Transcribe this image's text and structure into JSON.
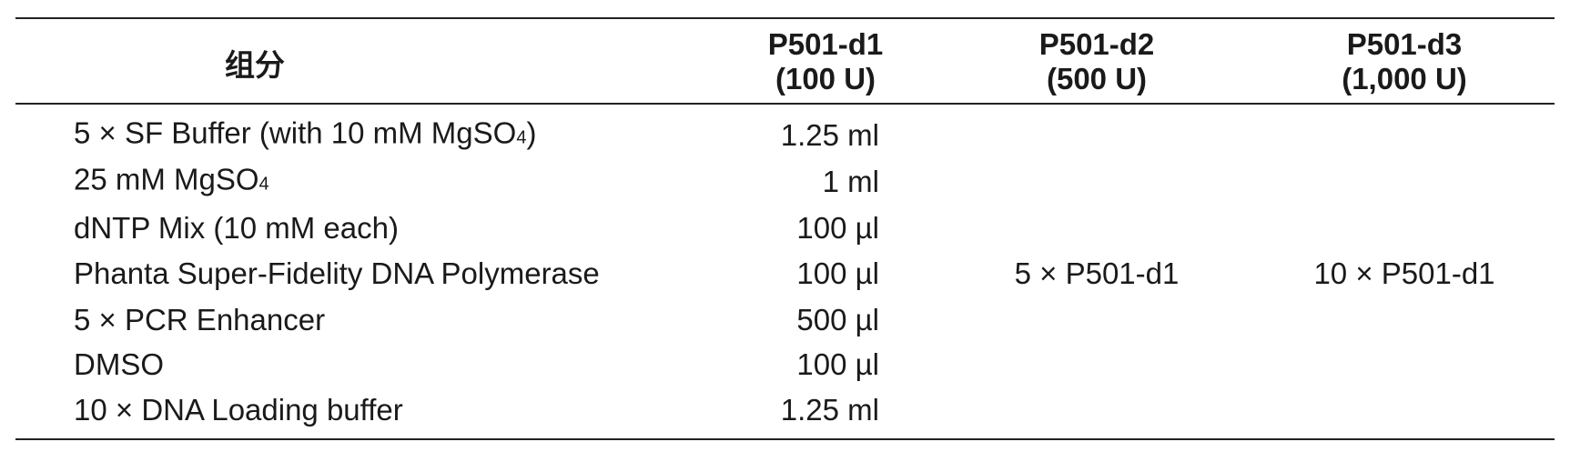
{
  "table": {
    "header": {
      "component": "组分",
      "columns": [
        [
          "P501-d1",
          "(100 U)"
        ],
        [
          "P501-d2",
          "(500 U)"
        ],
        [
          "P501-d3",
          "(1,000 U)"
        ]
      ]
    },
    "rows": [
      {
        "component": "5 × SF Buffer (with 10 mM MgSO",
        "sub": "4",
        "suffix": ")",
        "amount": "1.25 ml"
      },
      {
        "component": "25 mM MgSO",
        "sub": "4",
        "amount": "1 ml"
      },
      {
        "component": "dNTP Mix (10 mM each)",
        "amount": "100 µl"
      },
      {
        "component": "Phanta Super-Fidelity DNA Polymerase",
        "amount": "100 µl"
      },
      {
        "component": "5 × PCR Enhancer",
        "amount": "500 µl"
      },
      {
        "component": "DMSO",
        "amount": "100 µl"
      },
      {
        "component": "10 × DNA Loading buffer",
        "amount": "1.25 ml"
      }
    ],
    "merged": [
      "5 × P501-d1",
      "10 × P501-d1"
    ]
  }
}
